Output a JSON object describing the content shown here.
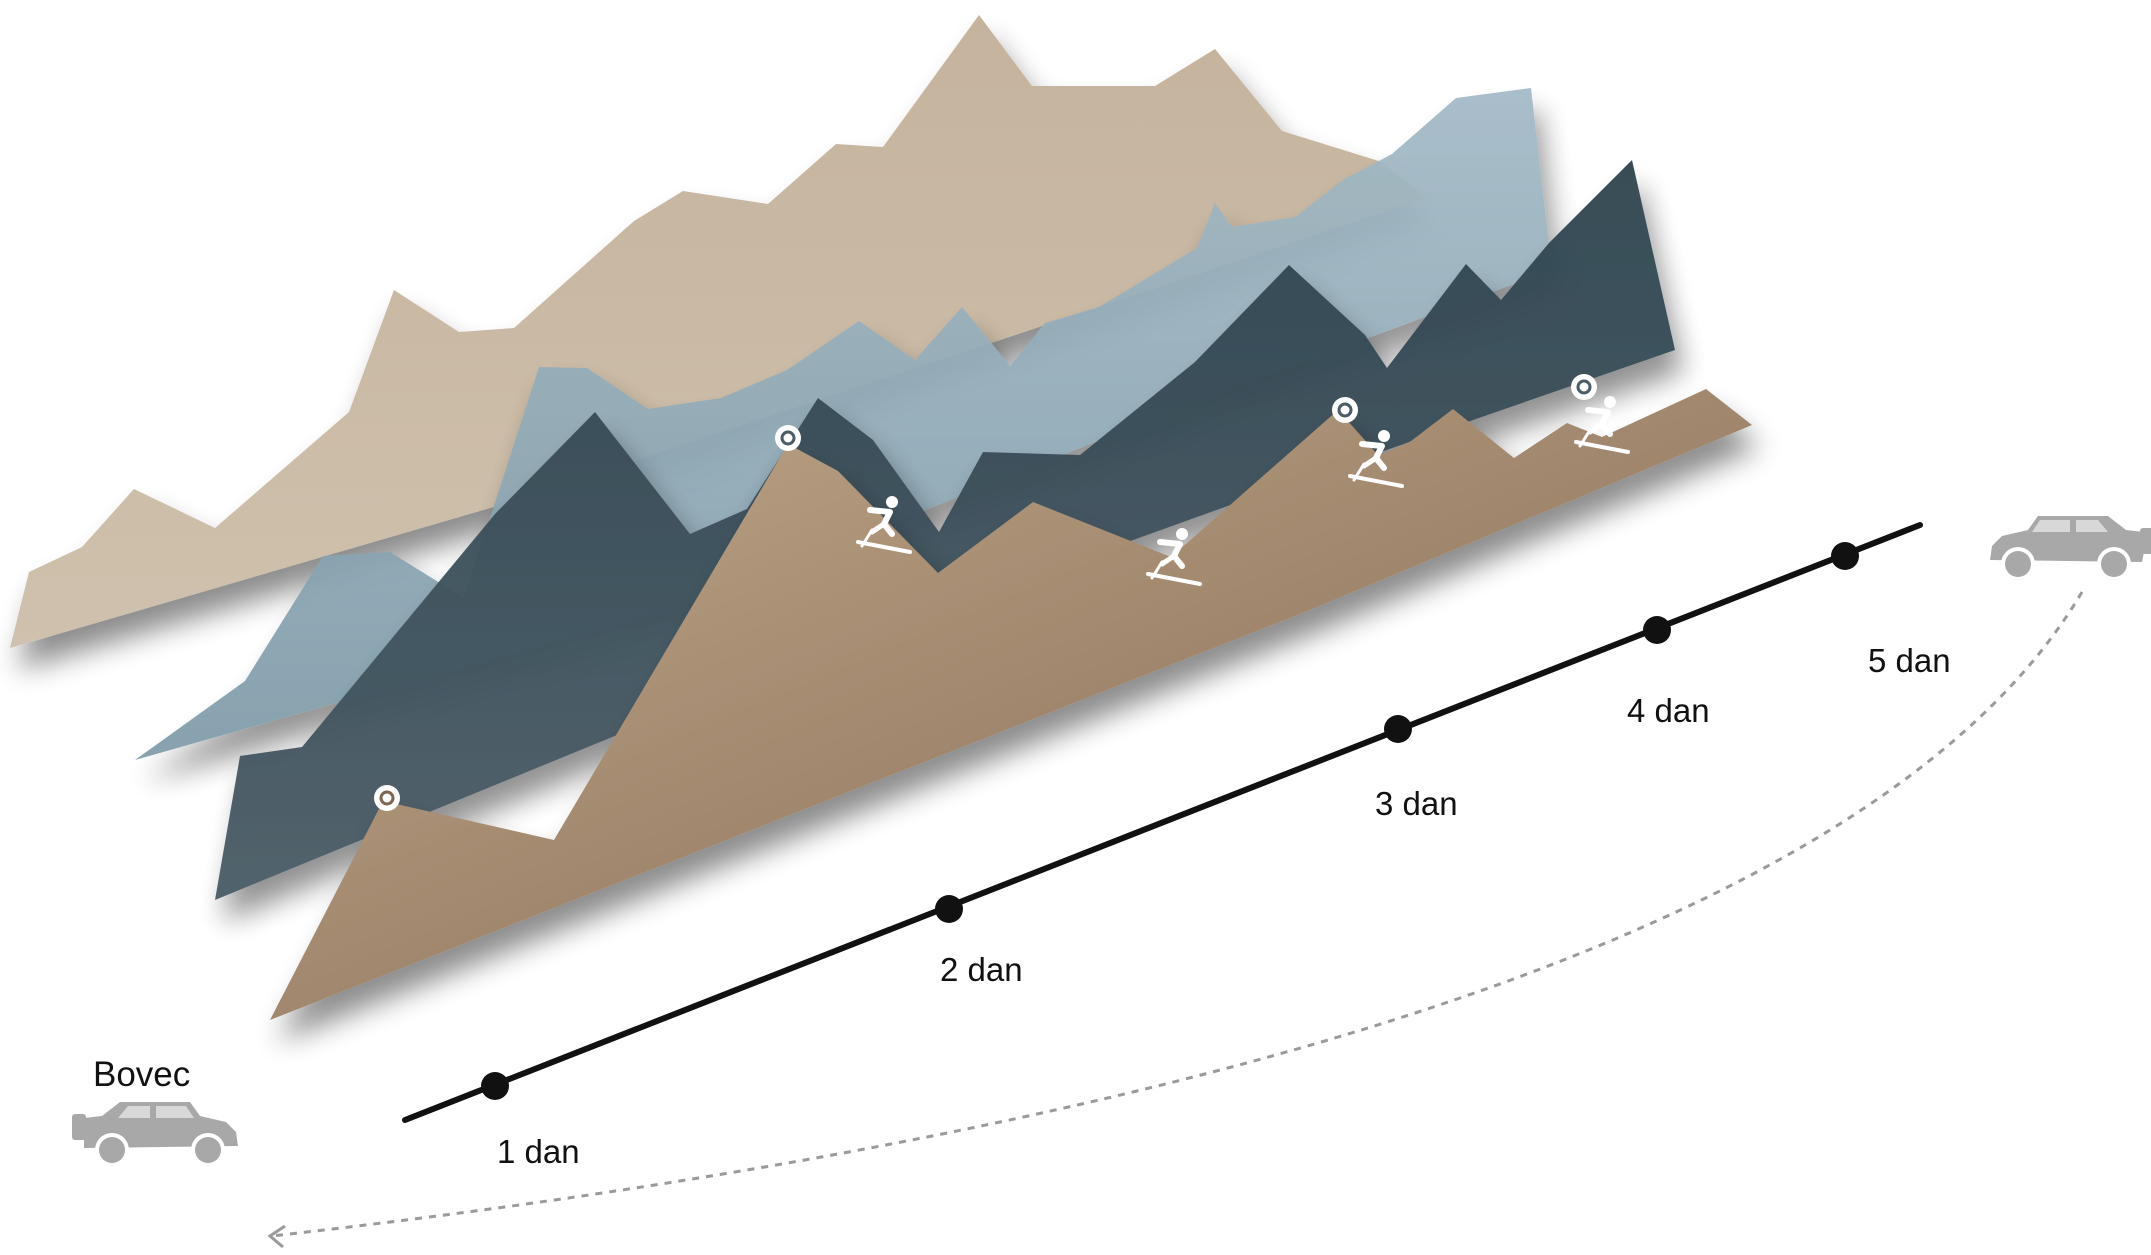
{
  "start_location": {
    "label": "Bovec",
    "icon": "suv-icon"
  },
  "end_vehicle": {
    "icon": "suv-icon"
  },
  "timeline": {
    "days": [
      {
        "label": "1 dan"
      },
      {
        "label": "2 dan"
      },
      {
        "label": "3 dan"
      },
      {
        "label": "4 dan"
      },
      {
        "label": "5 dan"
      }
    ]
  },
  "layers": [
    {
      "name": "back-range",
      "color": "#c9b9a4"
    },
    {
      "name": "blue-range",
      "color": "#94afbb"
    },
    {
      "name": "dark-range",
      "color": "#324752"
    },
    {
      "name": "front-range",
      "color": "#9b8164"
    }
  ],
  "summit_markers": 4,
  "ski_markers": 4,
  "colors": {
    "line": "#111111",
    "car": "#a8a8a8",
    "route_dash": "#9a9a9a",
    "marker": "#ffffff"
  }
}
